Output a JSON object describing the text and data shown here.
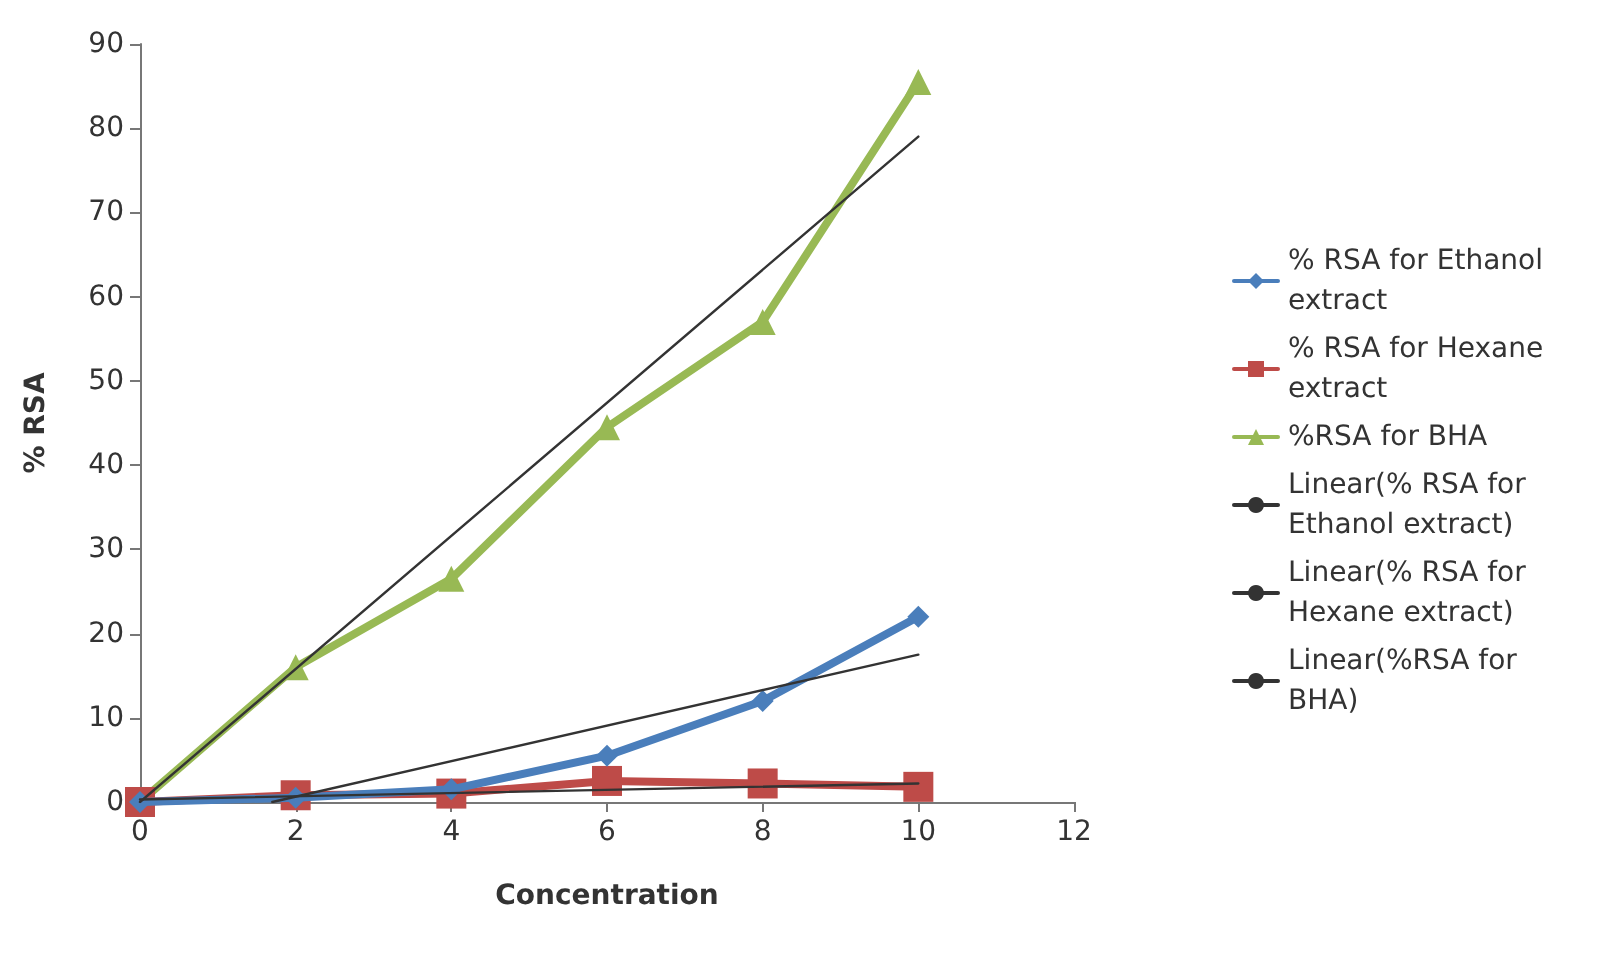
{
  "chart_data": {
    "type": "line",
    "xlabel": "Concentration",
    "ylabel": "% RSA",
    "x": [
      0,
      2,
      4,
      6,
      8,
      10
    ],
    "series": [
      {
        "name": "% RSA for Ethanol extract",
        "color": "#4a7ebb",
        "marker": "diamond",
        "values": [
          0,
          0.5,
          1.5,
          5.5,
          12,
          22
        ]
      },
      {
        "name": "% RSA for Hexane extract",
        "color": "#be4b48",
        "marker": "square",
        "values": [
          0,
          0.8,
          1,
          2.5,
          2.2,
          1.8
        ]
      },
      {
        "name": "%RSA for BHA",
        "color": "#98b954",
        "marker": "triangle",
        "values": [
          0,
          16,
          26.5,
          44.5,
          57,
          85.5
        ]
      },
      {
        "name": "Linear(% RSA for Ethanol extract)",
        "color": "#333333",
        "marker": "none",
        "x": [
          1.7,
          10
        ],
        "values": [
          0,
          17.5
        ]
      },
      {
        "name": "Linear(% RSA for Hexane extract)",
        "color": "#333333",
        "marker": "none",
        "x": [
          0,
          10
        ],
        "values": [
          0.3,
          2.2
        ]
      },
      {
        "name": "Linear(%RSA for BHA)",
        "color": "#333333",
        "marker": "none",
        "x": [
          0,
          10
        ],
        "values": [
          0,
          79
        ]
      }
    ],
    "xlim": [
      0,
      12
    ],
    "xticks": [
      0,
      2,
      4,
      6,
      8,
      10,
      12
    ],
    "ylim": [
      0,
      90
    ],
    "yticks": [
      0,
      10,
      20,
      30,
      40,
      50,
      60,
      70,
      80,
      90
    ],
    "grid": false,
    "legend": "right",
    "line_style": "solid"
  }
}
